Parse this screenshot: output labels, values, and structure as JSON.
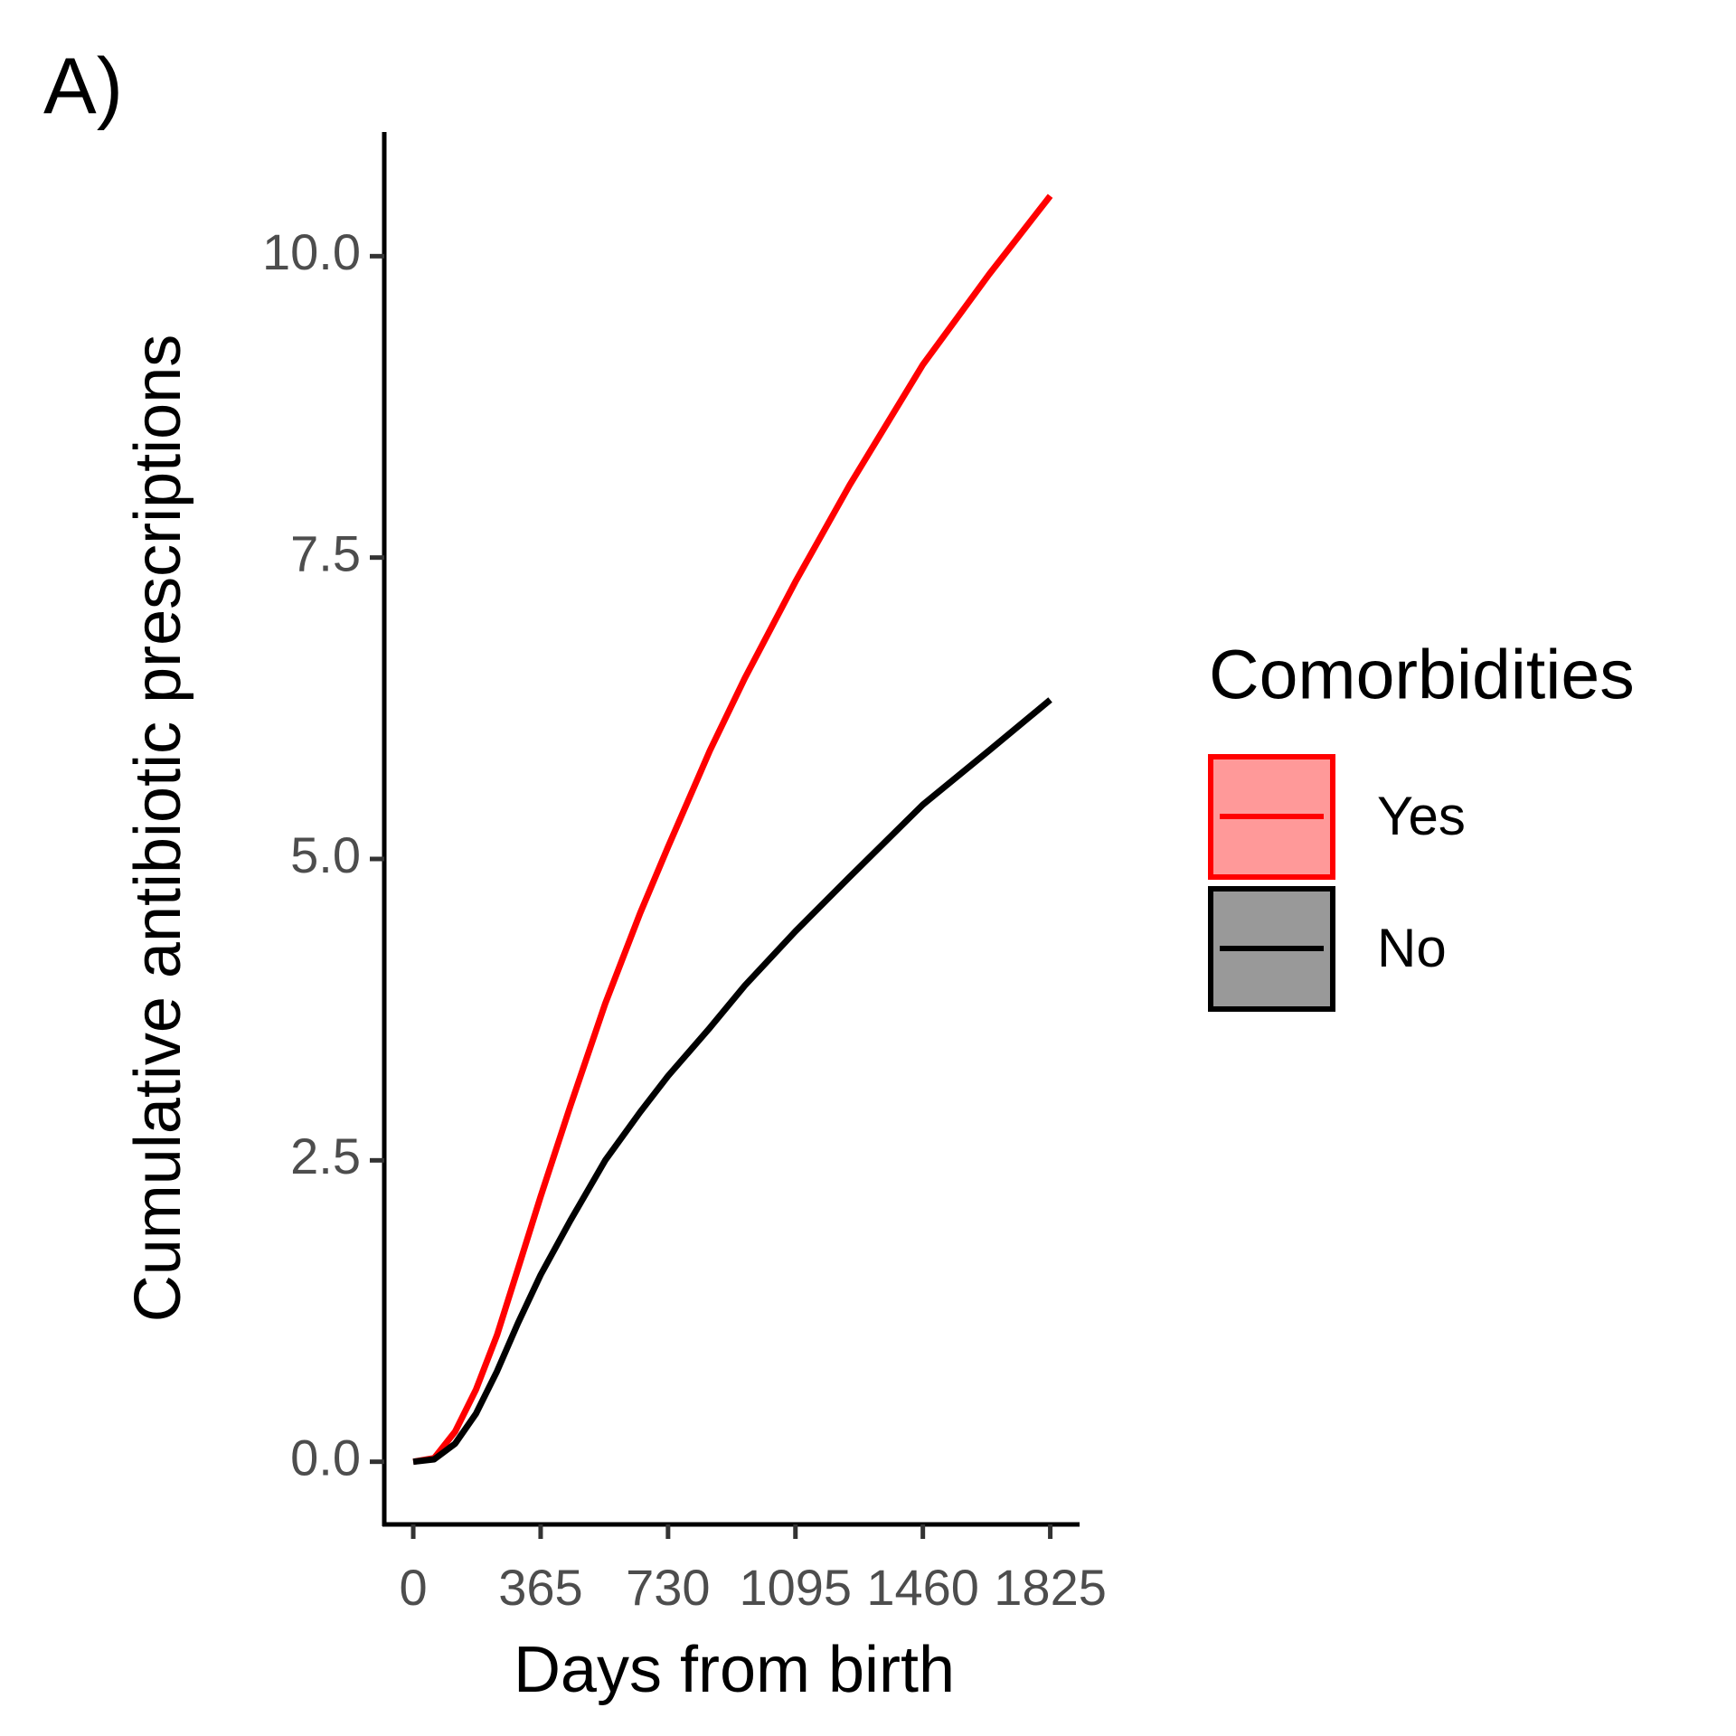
{
  "chart_data": {
    "type": "line",
    "panel_label": "A)",
    "x_label": "Days from birth",
    "y_label": "Cumulative antibiotic prescriptions",
    "legend_title": "Comorbidities",
    "legend_position": "right",
    "x": [
      0,
      60,
      120,
      180,
      240,
      300,
      365,
      450,
      550,
      650,
      730,
      850,
      950,
      1095,
      1250,
      1460,
      1650,
      1825
    ],
    "series": [
      {
        "name": "Yes",
        "color": "#ff0000",
        "values": [
          0,
          0.03,
          0.25,
          0.6,
          1.05,
          1.6,
          2.2,
          2.95,
          3.8,
          4.55,
          5.1,
          5.9,
          6.5,
          7.3,
          8.1,
          9.1,
          9.85,
          10.5
        ]
      },
      {
        "name": "No",
        "color": "#000000",
        "values": [
          0,
          0.02,
          0.15,
          0.4,
          0.75,
          1.15,
          1.55,
          2.0,
          2.5,
          2.9,
          3.2,
          3.6,
          3.95,
          4.4,
          4.85,
          5.45,
          5.9,
          6.32
        ]
      }
    ],
    "xlim": [
      -83,
      1909
    ],
    "xticks": [
      0,
      365,
      730,
      1095,
      1460,
      1825
    ],
    "ylim": [
      -0.52,
      11.03
    ],
    "yticks": [
      {
        "value": 0,
        "label": "0.0"
      },
      {
        "value": 2.5,
        "label": "2.5"
      },
      {
        "value": 5,
        "label": "5.0"
      },
      {
        "value": 7.5,
        "label": "7.5"
      },
      {
        "value": 10,
        "label": "10.0"
      }
    ],
    "grid": false
  }
}
